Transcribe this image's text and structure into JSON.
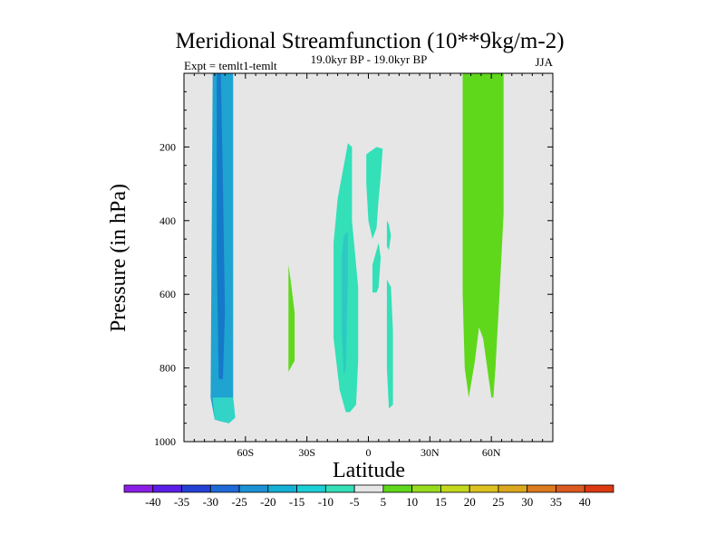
{
  "chart_data": {
    "type": "contour",
    "title": "Meridional Streamfunction (10**9kg/m-2)",
    "subtitle_left": "Expt = temlt1-temlt",
    "subtitle_center": "19.0kyr BP - 19.0kyr BP",
    "subtitle_right": "JJA",
    "xlabel": "Latitude",
    "ylabel": "Pressure (in hPa)",
    "xlim": [
      -90,
      90
    ],
    "ylim": [
      1000,
      0
    ],
    "x_ticks": [
      {
        "value": -60,
        "label": "60S"
      },
      {
        "value": -30,
        "label": "30S"
      },
      {
        "value": 0,
        "label": "0"
      },
      {
        "value": 30,
        "label": "30N"
      },
      {
        "value": 60,
        "label": "60N"
      }
    ],
    "y_ticks": [
      {
        "value": 200,
        "label": "200"
      },
      {
        "value": 400,
        "label": "400"
      },
      {
        "value": 600,
        "label": "600"
      },
      {
        "value": 800,
        "label": "800"
      },
      {
        "value": 1000,
        "label": "1000"
      }
    ],
    "background_color": "#e6e6e6",
    "regions": [
      {
        "name": "sh-negative-column",
        "level": -15,
        "color": "#1fa3d1",
        "points": [
          [
            -76,
            0
          ],
          [
            -66,
            0
          ],
          [
            -66,
            880
          ],
          [
            -65,
            935
          ],
          [
            -68,
            950
          ],
          [
            -72,
            945
          ],
          [
            -75,
            940
          ],
          [
            -77,
            880
          ]
        ]
      },
      {
        "name": "sh-negative-core",
        "level": -20,
        "color": "#1578c8",
        "points": [
          [
            -74,
            0
          ],
          [
            -72,
            0
          ],
          [
            -71,
            300
          ],
          [
            -70,
            650
          ],
          [
            -71,
            830
          ],
          [
            -73,
            830
          ],
          [
            -74,
            500
          ]
        ]
      },
      {
        "name": "sh-weak-negative-base",
        "level": -10,
        "color": "#33d4c8",
        "points": [
          [
            -76,
            880
          ],
          [
            -66,
            880
          ],
          [
            -65,
            935
          ],
          [
            -68,
            950
          ],
          [
            -72,
            945
          ],
          [
            -75,
            940
          ]
        ]
      },
      {
        "name": "sh-positive-cell",
        "level": 5,
        "color": "#5fd81c",
        "points": [
          [
            -39,
            520
          ],
          [
            -38,
            560
          ],
          [
            -36,
            650
          ],
          [
            -36,
            780
          ],
          [
            -38,
            800
          ],
          [
            -39,
            810
          ],
          [
            -39,
            700
          ]
        ]
      },
      {
        "name": "tropical-negative-cell-west",
        "level": -5,
        "color": "#33e0b8",
        "points": [
          [
            -17,
            460
          ],
          [
            -15,
            340
          ],
          [
            -12,
            250
          ],
          [
            -10,
            190
          ],
          [
            -8,
            200
          ],
          [
            -8,
            400
          ],
          [
            -5,
            580
          ],
          [
            -5,
            780
          ],
          [
            -6,
            900
          ],
          [
            -9,
            920
          ],
          [
            -11,
            920
          ],
          [
            -14,
            860
          ],
          [
            -17,
            720
          ],
          [
            -17,
            600
          ]
        ]
      },
      {
        "name": "tropical-negative-core",
        "level": -10,
        "color": "#2ec9c4",
        "points": [
          [
            -13,
            500
          ],
          [
            -12,
            440
          ],
          [
            -10,
            430
          ],
          [
            -10,
            560
          ],
          [
            -11,
            800
          ],
          [
            -12,
            820
          ],
          [
            -13,
            700
          ]
        ]
      },
      {
        "name": "tropical-negative-cell-upper",
        "level": -5,
        "color": "#33e0b8",
        "points": [
          [
            -1,
            220
          ],
          [
            4,
            200
          ],
          [
            7,
            205
          ],
          [
            6,
            280
          ],
          [
            5,
            340
          ],
          [
            4,
            420
          ],
          [
            2,
            450
          ],
          [
            0,
            400
          ],
          [
            -1,
            300
          ]
        ]
      },
      {
        "name": "tropical-negative-cell-mid",
        "level": -5,
        "color": "#33e0b8",
        "points": [
          [
            2,
            520
          ],
          [
            5,
            460
          ],
          [
            6,
            500
          ],
          [
            5,
            580
          ],
          [
            4,
            595
          ],
          [
            2,
            595
          ]
        ]
      },
      {
        "name": "tropical-negative-sliver-a",
        "level": -5,
        "color": "#33e0b8",
        "points": [
          [
            9,
            400
          ],
          [
            10,
            410
          ],
          [
            11,
            440
          ],
          [
            10,
            480
          ],
          [
            9,
            470
          ]
        ]
      },
      {
        "name": "tropical-negative-sliver-b",
        "level": -5,
        "color": "#33e0b8",
        "points": [
          [
            9,
            560
          ],
          [
            11,
            580
          ],
          [
            12,
            700
          ],
          [
            12,
            900
          ],
          [
            10,
            910
          ],
          [
            9,
            800
          ]
        ]
      },
      {
        "name": "nh-positive-column",
        "level": 10,
        "color": "#5fd81c",
        "points": [
          [
            46,
            0
          ],
          [
            66,
            0
          ],
          [
            66,
            380
          ],
          [
            64,
            600
          ],
          [
            62,
            800
          ],
          [
            61,
            880
          ],
          [
            60,
            880
          ],
          [
            59,
            840
          ],
          [
            56,
            720
          ],
          [
            54,
            690
          ],
          [
            52,
            780
          ],
          [
            49,
            880
          ],
          [
            47,
            800
          ],
          [
            46,
            600
          ]
        ]
      }
    ],
    "colorbar": {
      "levels": [
        -40,
        -35,
        -30,
        -25,
        -20,
        -15,
        -10,
        -5,
        5,
        10,
        15,
        20,
        25,
        30,
        35,
        40
      ],
      "colors": [
        "#8b1ee6",
        "#5b1ee6",
        "#2441d6",
        "#1f6ad9",
        "#1b92d6",
        "#14b0d6",
        "#1dcfd6",
        "#33e0b8",
        "#e6e6e6",
        "#5fd81c",
        "#98dc1e",
        "#c4d81e",
        "#dcc21e",
        "#dca81e",
        "#dc7a1e",
        "#dc5a1e",
        "#dc3a10"
      ]
    }
  }
}
